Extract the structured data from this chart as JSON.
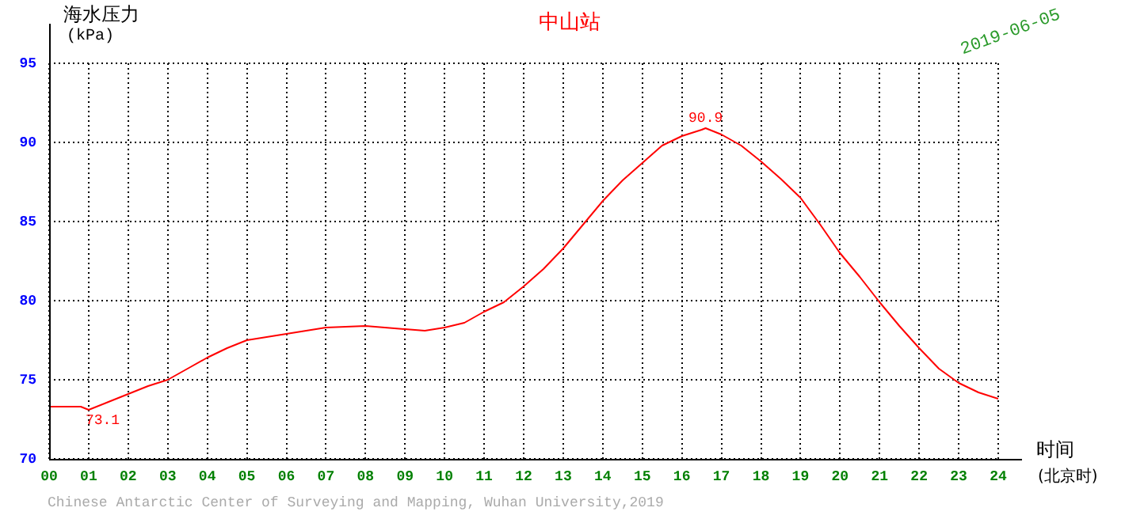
{
  "chart_data": {
    "type": "line",
    "title": "中山站",
    "xlabel": "时间\n(北京时)",
    "ylabel": "海水压力\n(kPa)",
    "annotations": [
      "2019-06-05",
      "Chinese Antarctic Center of Surveying and Mapping, Wuhan University,2019",
      {
        "text": "90.9",
        "x": 16.6,
        "y": 90.9
      },
      {
        "text": "73.1",
        "x": 1,
        "y": 73.1
      }
    ],
    "x": [
      0,
      0.5,
      0.8,
      1,
      1.5,
      2,
      2.5,
      3,
      3.5,
      4,
      4.5,
      5,
      6,
      7,
      8,
      9,
      9.5,
      10,
      10.5,
      11,
      11.5,
      12,
      12.5,
      13,
      13.5,
      14,
      14.5,
      15,
      15.5,
      16,
      16.5,
      16.6,
      17,
      17.5,
      18,
      18.5,
      19,
      19.5,
      20,
      20.5,
      21,
      21.5,
      22,
      22.5,
      23,
      23.5,
      24
    ],
    "series": [
      {
        "color": "#ff0000",
        "values": [
          73.3,
          73.3,
          73.3,
          73.1,
          73.6,
          74.1,
          74.6,
          75.0,
          75.7,
          76.4,
          77.0,
          77.5,
          77.9,
          78.3,
          78.4,
          78.2,
          78.1,
          78.3,
          78.6,
          79.3,
          79.9,
          80.9,
          82.0,
          83.3,
          84.8,
          86.3,
          87.6,
          88.7,
          89.8,
          90.4,
          90.8,
          90.9,
          90.5,
          89.8,
          88.8,
          87.7,
          86.5,
          84.8,
          83.0,
          81.5,
          79.9,
          78.4,
          77.0,
          75.7,
          74.8,
          74.2,
          73.8
        ]
      }
    ],
    "xlim": [
      0,
      24
    ],
    "xticks": [
      {
        "value": 0,
        "label": "00"
      },
      {
        "value": 1,
        "label": "01"
      },
      {
        "value": 2,
        "label": "02"
      },
      {
        "value": 3,
        "label": "03"
      },
      {
        "value": 4,
        "label": "04"
      },
      {
        "value": 5,
        "label": "05"
      },
      {
        "value": 6,
        "label": "06"
      },
      {
        "value": 7,
        "label": "07"
      },
      {
        "value": 8,
        "label": "08"
      },
      {
        "value": 9,
        "label": "09"
      },
      10,
      11,
      12,
      13,
      14,
      15,
      16,
      17,
      18,
      19,
      20,
      21,
      22,
      23,
      24
    ],
    "ylim": [
      70,
      95
    ],
    "yticks": [
      70,
      75,
      80,
      85,
      90,
      95
    ],
    "grid": true,
    "line_style": "solid"
  }
}
